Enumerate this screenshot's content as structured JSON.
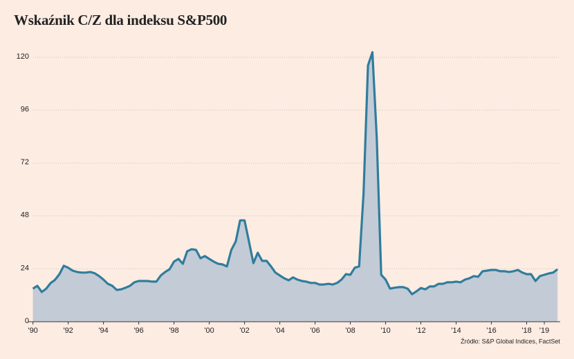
{
  "chart_data": {
    "type": "area",
    "title": "Wskaźnik C/Z dla indeksu S&P500",
    "source": "Źródło: S&P Global Indices, FactSet",
    "x": [
      1990,
      1990.25,
      1990.5,
      1990.75,
      1991,
      1991.25,
      1991.5,
      1991.75,
      1992,
      1992.25,
      1992.5,
      1992.75,
      1993,
      1993.25,
      1993.5,
      1993.75,
      1994,
      1994.25,
      1994.5,
      1994.75,
      1995,
      1995.25,
      1995.5,
      1995.75,
      1996,
      1996.25,
      1996.5,
      1996.75,
      1997,
      1997.25,
      1997.5,
      1997.75,
      1998,
      1998.25,
      1998.5,
      1998.75,
      1999,
      1999.25,
      1999.5,
      1999.75,
      2000,
      2000.25,
      2000.5,
      2000.75,
      2001,
      2001.25,
      2001.5,
      2001.75,
      2002,
      2002.25,
      2002.5,
      2002.75,
      2003,
      2003.25,
      2003.5,
      2003.75,
      2004,
      2004.25,
      2004.5,
      2004.75,
      2005,
      2005.25,
      2005.5,
      2005.75,
      2006,
      2006.25,
      2006.5,
      2006.75,
      2007,
      2007.25,
      2007.5,
      2007.75,
      2008,
      2008.25,
      2008.5,
      2008.75,
      2009,
      2009.25,
      2009.5,
      2009.75,
      2010,
      2010.25,
      2010.5,
      2010.75,
      2011,
      2011.25,
      2011.5,
      2011.75,
      2012,
      2012.25,
      2012.5,
      2012.75,
      2013,
      2013.25,
      2013.5,
      2013.75,
      2014,
      2014.25,
      2014.5,
      2014.75,
      2015,
      2015.25,
      2015.5,
      2015.75,
      2016,
      2016.25,
      2016.5,
      2016.75,
      2017,
      2017.25,
      2017.5,
      2017.75,
      2018,
      2018.25,
      2018.5,
      2018.75,
      2019,
      2019.25,
      2019.5,
      2019.75
    ],
    "series": [
      {
        "color": "#2f7d9c",
        "fill": "#c3cbd6",
        "values": [
          15,
          16.3,
          13.5,
          15,
          17.5,
          19,
          21.6,
          25.4,
          24.5,
          23.2,
          22.6,
          22.3,
          22.3,
          22.6,
          22,
          20.7,
          19.1,
          17.2,
          16.3,
          14.4,
          14.7,
          15.4,
          16.3,
          17.9,
          18.5,
          18.5,
          18.5,
          18.2,
          18.2,
          21,
          22.6,
          23.8,
          27.3,
          28.5,
          26.3,
          32,
          32.9,
          32.6,
          28.8,
          29.8,
          28.5,
          27.3,
          26.3,
          26,
          25.1,
          32.6,
          36.4,
          46,
          46,
          36.4,
          26.6,
          31.3,
          27.6,
          27.6,
          25.1,
          22.3,
          21,
          19.7,
          18.8,
          20.1,
          19.1,
          18.5,
          18.2,
          17.6,
          17.6,
          16.9,
          16.9,
          17.2,
          16.9,
          17.6,
          19.1,
          21.6,
          21.3,
          24.5,
          25.1,
          58.3,
          116.3,
          122.3,
          83.4,
          21.3,
          19.1,
          15,
          15.4,
          15.7,
          15.7,
          15,
          12.5,
          13.8,
          15.3,
          14.7,
          16,
          16,
          17.2,
          17.2,
          17.9,
          17.9,
          18.2,
          17.9,
          19.1,
          19.7,
          20.7,
          20.4,
          22.9,
          23.2,
          23.5,
          23.5,
          22.9,
          22.9,
          22.6,
          22.9,
          23.5,
          22.3,
          21.6,
          21.6,
          18.5,
          20.7,
          21.3,
          21.9,
          22.3,
          23.8
        ]
      }
    ],
    "xlim": [
      1989.7,
      2019.9
    ],
    "ylim": [
      0,
      120
    ],
    "yticks": [
      0,
      24,
      48,
      72,
      96,
      120
    ],
    "xticks": [
      {
        "value": 1990,
        "label": "'90"
      },
      {
        "value": 1992,
        "label": "'92"
      },
      {
        "value": 1994,
        "label": "'94"
      },
      {
        "value": 1996,
        "label": "'96"
      },
      {
        "value": 1998,
        "label": "'98"
      },
      {
        "value": 2000,
        "label": "'00"
      },
      {
        "value": 2002,
        "label": "'02"
      },
      {
        "value": 2004,
        "label": "'04"
      },
      {
        "value": 2006,
        "label": "'06"
      },
      {
        "value": 2008,
        "label": "'08"
      },
      {
        "value": 2010,
        "label": "'10"
      },
      {
        "value": 2012,
        "label": "'12"
      },
      {
        "value": 2014,
        "label": "'14"
      },
      {
        "value": 2016,
        "label": "'16"
      },
      {
        "value": 2018,
        "label": "'18"
      },
      {
        "value": 2019,
        "label": "'19"
      }
    ],
    "grid": true
  }
}
